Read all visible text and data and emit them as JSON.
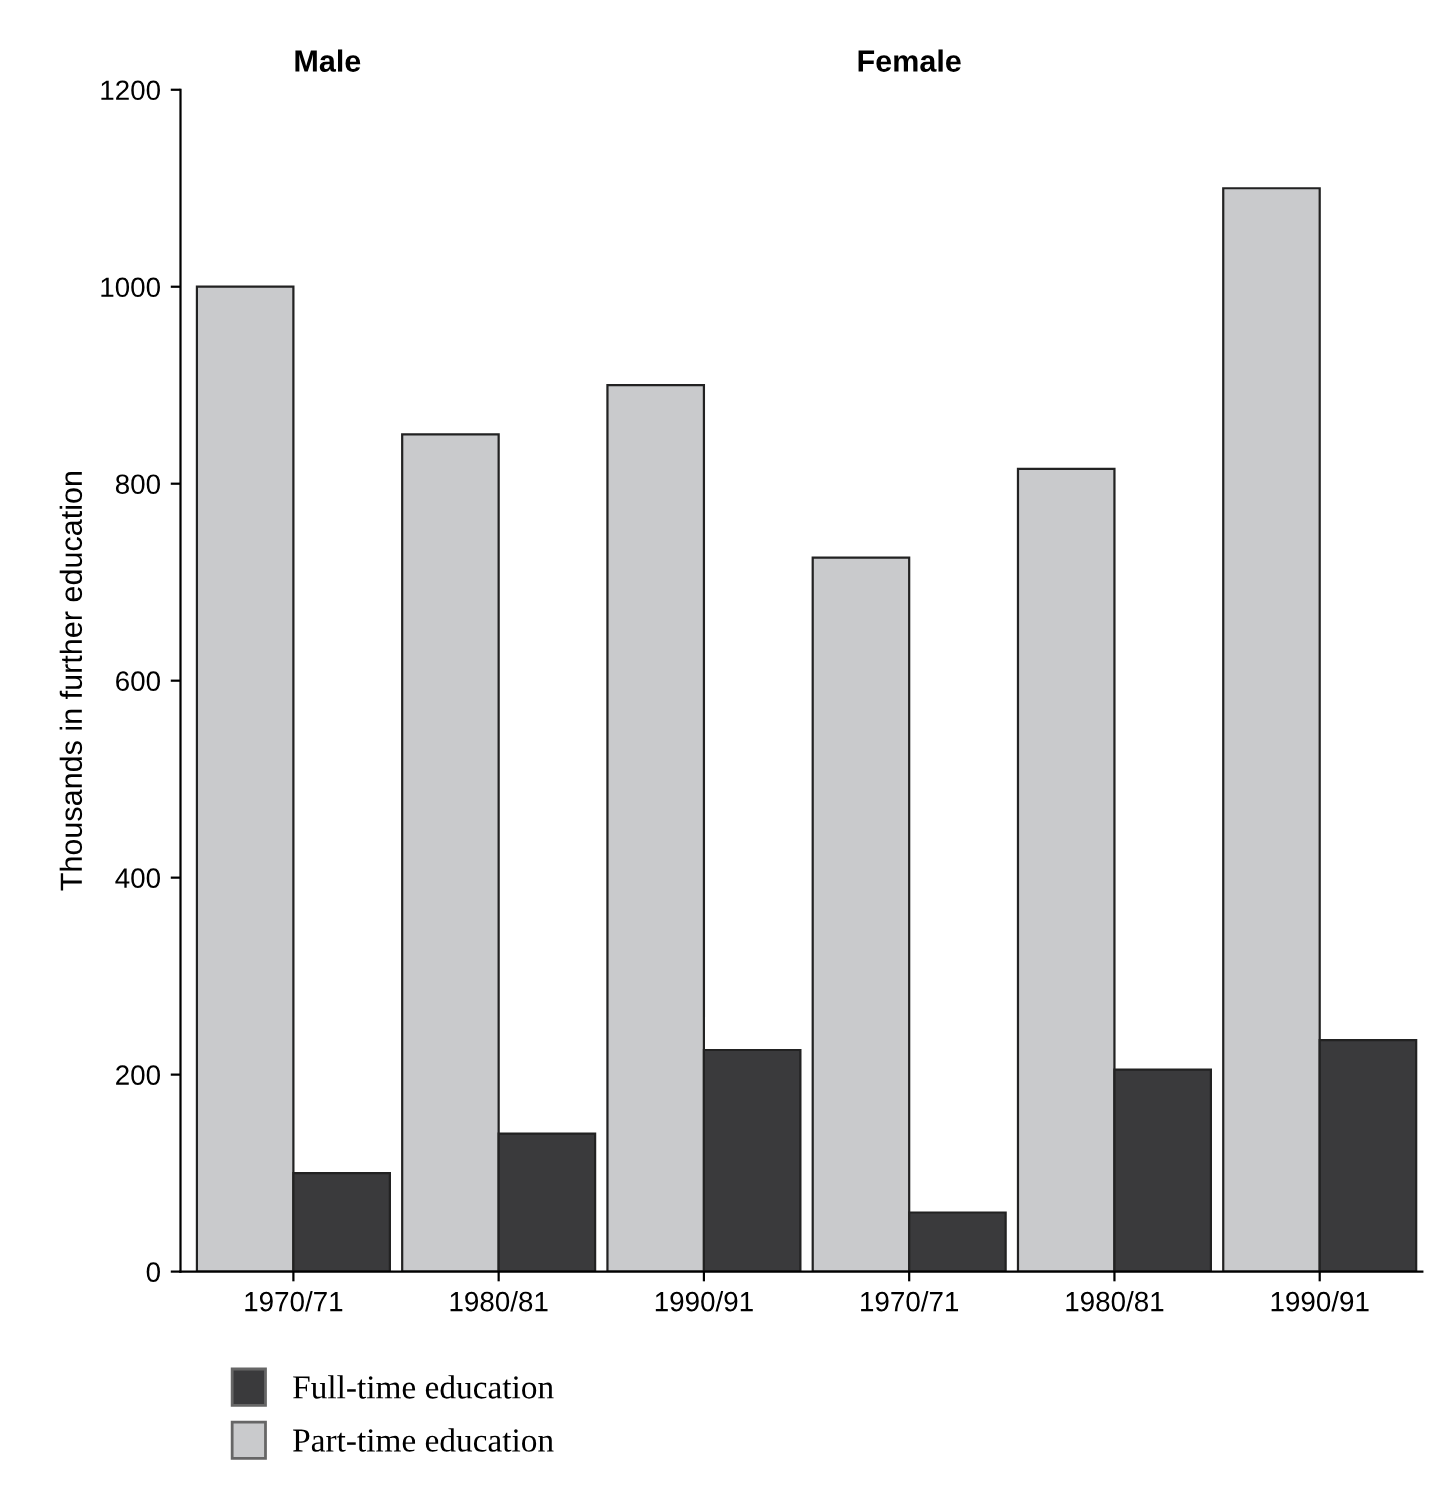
{
  "chart_data": {
    "type": "bar",
    "ylabel": "Thousands in further education",
    "categories": [
      "1970/71",
      "1980/81",
      "1990/91",
      "1970/71",
      "1980/81",
      "1990/91"
    ],
    "series": [
      {
        "name": "Full-time education",
        "color": "#3a3a3c",
        "values": [
          100,
          140,
          225,
          60,
          205,
          235
        ]
      },
      {
        "name": "Part-time education",
        "color": "#c9cacc",
        "values": [
          1000,
          850,
          900,
          725,
          815,
          1100
        ]
      }
    ],
    "ylim": [
      0,
      1200
    ],
    "yticks": [
      0,
      200,
      400,
      600,
      800,
      1000,
      1200
    ],
    "annotations": [
      "Male",
      "Female"
    ],
    "grid": false,
    "legend": "bottom left"
  }
}
